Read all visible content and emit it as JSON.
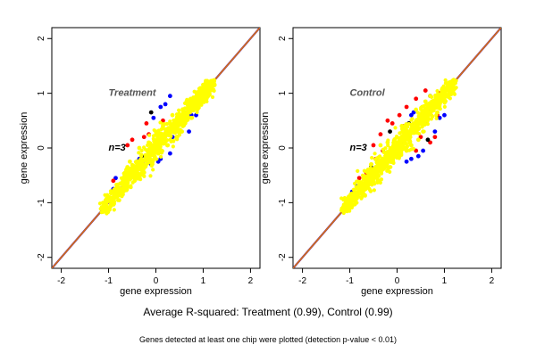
{
  "caption_main": "Average R-squared: Treatment (0.99), Control (0.99)",
  "caption_sub": "Genes detected at least one chip were plotted (detection p-value < 0.01)",
  "colors": {
    "blue": "#0000ff",
    "red": "#ff0000",
    "yellow": "#ffff00",
    "black": "#000000",
    "diag_orange": "#e07b00",
    "diag_purple": "#7a2a8a",
    "label_gray": "#555555"
  },
  "chart_data": [
    {
      "type": "scatter",
      "xlabel": "gene expression",
      "ylabel": "gene expression",
      "xlim": [
        -2.2,
        2.2
      ],
      "ylim": [
        -2.2,
        2.2
      ],
      "xticks": [
        -2,
        -1,
        0,
        1,
        2
      ],
      "yticks": [
        -2,
        -1,
        0,
        1,
        2
      ],
      "grid": false,
      "annotation_title": "Treatment",
      "annotation_n": "n=3",
      "reference_line": "y = x",
      "series": [
        {
          "color": "blue",
          "points": [
            [
              -0.05,
              0.55
            ],
            [
              0.1,
              0.75
            ],
            [
              0.2,
              0.8
            ],
            [
              0.3,
              0.95
            ],
            [
              0.75,
              0.6
            ],
            [
              0.85,
              0.6
            ],
            [
              0.7,
              0.3
            ],
            [
              0.55,
              0.45
            ],
            [
              0.3,
              -0.1
            ],
            [
              0.1,
              -0.2
            ],
            [
              0.05,
              -0.25
            ],
            [
              -0.1,
              -0.3
            ],
            [
              0.35,
              0.2
            ],
            [
              -0.35,
              -0.2
            ],
            [
              -0.5,
              -0.5
            ],
            [
              -0.85,
              -0.55
            ],
            [
              -0.9,
              -0.75
            ],
            [
              0.6,
              0.65
            ],
            [
              0.45,
              0.55
            ],
            [
              0.9,
              0.95
            ]
          ]
        },
        {
          "color": "red",
          "points": [
            [
              -0.5,
              0.15
            ],
            [
              -0.25,
              0.2
            ],
            [
              -0.2,
              0.45
            ],
            [
              -0.6,
              0.05
            ],
            [
              0.15,
              0.5
            ],
            [
              -0.15,
              0.25
            ],
            [
              -0.9,
              -0.6
            ]
          ]
        },
        {
          "color": "black",
          "points": [
            [
              -0.1,
              0.65
            ],
            [
              0.5,
              0.5
            ],
            [
              -0.3,
              -0.15
            ],
            [
              0.0,
              0.05
            ],
            [
              -0.4,
              -0.25
            ]
          ]
        },
        {
          "color": "yellow",
          "points": [
            [
              -1.1,
              -1.05
            ],
            [
              -1.0,
              -0.95
            ],
            [
              -0.9,
              -0.8
            ],
            [
              -0.8,
              -0.75
            ],
            [
              -0.75,
              -0.65
            ],
            [
              -0.6,
              -0.55
            ],
            [
              -0.5,
              -0.45
            ],
            [
              -0.4,
              -0.35
            ],
            [
              -0.3,
              -0.25
            ],
            [
              -0.2,
              -0.15
            ],
            [
              -0.1,
              -0.05
            ],
            [
              0.0,
              0.05
            ],
            [
              0.1,
              0.1
            ],
            [
              0.2,
              0.25
            ],
            [
              0.3,
              0.35
            ],
            [
              0.4,
              0.45
            ],
            [
              0.5,
              0.55
            ],
            [
              0.6,
              0.65
            ],
            [
              0.7,
              0.75
            ],
            [
              0.8,
              0.85
            ],
            [
              0.9,
              0.95
            ],
            [
              1.0,
              1.05
            ],
            [
              1.1,
              1.1
            ],
            [
              1.2,
              1.2
            ],
            [
              -0.6,
              -0.35
            ],
            [
              -0.45,
              -0.6
            ],
            [
              -0.25,
              -0.45
            ],
            [
              -0.15,
              0.1
            ],
            [
              0.05,
              -0.1
            ],
            [
              0.25,
              0.05
            ],
            [
              0.35,
              0.6
            ],
            [
              0.55,
              0.3
            ],
            [
              0.65,
              0.85
            ],
            [
              0.75,
              0.55
            ],
            [
              -0.35,
              0.0
            ],
            [
              0.0,
              0.3
            ],
            [
              -0.7,
              -0.85
            ],
            [
              -0.55,
              -0.25
            ],
            [
              0.15,
              0.4
            ],
            [
              0.45,
              0.2
            ]
          ]
        }
      ]
    },
    {
      "type": "scatter",
      "xlabel": "gene expression",
      "ylabel": "gene expression",
      "xlim": [
        -2.2,
        2.2
      ],
      "ylim": [
        -2.2,
        2.2
      ],
      "xticks": [
        -2,
        -1,
        0,
        1,
        2
      ],
      "yticks": [
        -2,
        -1,
        0,
        1,
        2
      ],
      "grid": false,
      "annotation_title": "Control",
      "annotation_n": "n=3",
      "reference_line": "y = x",
      "series": [
        {
          "color": "blue",
          "points": [
            [
              0.3,
              0.6
            ],
            [
              0.35,
              0.65
            ],
            [
              0.9,
              0.55
            ],
            [
              1.0,
              0.6
            ],
            [
              0.55,
              -0.05
            ],
            [
              0.45,
              -0.15
            ],
            [
              0.3,
              -0.2
            ],
            [
              0.2,
              -0.25
            ],
            [
              -0.05,
              -0.15
            ],
            [
              -0.6,
              -0.55
            ],
            [
              -0.85,
              -0.7
            ],
            [
              -0.95,
              -0.8
            ],
            [
              0.7,
              0.95
            ],
            [
              0.8,
              0.3
            ]
          ]
        },
        {
          "color": "red",
          "points": [
            [
              -0.2,
              0.5
            ],
            [
              -0.1,
              0.45
            ],
            [
              -0.35,
              0.25
            ],
            [
              -0.5,
              0.05
            ],
            [
              0.05,
              0.6
            ],
            [
              0.2,
              0.75
            ],
            [
              0.4,
              0.9
            ],
            [
              0.6,
              1.05
            ],
            [
              0.9,
              1.0
            ],
            [
              0.95,
              0.9
            ],
            [
              0.85,
              0.6
            ],
            [
              0.8,
              0.2
            ],
            [
              0.7,
              0.1
            ],
            [
              0.6,
              0.45
            ],
            [
              0.5,
              0.2
            ],
            [
              0.4,
              -0.05
            ],
            [
              -0.65,
              -0.45
            ],
            [
              -0.8,
              -0.55
            ],
            [
              -0.9,
              -0.95
            ],
            [
              -0.3,
              -0.05
            ],
            [
              0.15,
              0.4
            ],
            [
              -0.45,
              -0.2
            ]
          ]
        },
        {
          "color": "black",
          "points": [
            [
              0.25,
              0.45
            ],
            [
              -0.15,
              0.3
            ],
            [
              -0.55,
              -0.35
            ],
            [
              0.65,
              0.15
            ],
            [
              -0.85,
              -0.85
            ]
          ]
        },
        {
          "color": "yellow",
          "points": [
            [
              -1.1,
              -1.05
            ],
            [
              -1.0,
              -0.95
            ],
            [
              -0.9,
              -0.85
            ],
            [
              -0.8,
              -0.75
            ],
            [
              -0.7,
              -0.65
            ],
            [
              -0.6,
              -0.55
            ],
            [
              -0.5,
              -0.45
            ],
            [
              -0.4,
              -0.35
            ],
            [
              -0.3,
              -0.25
            ],
            [
              -0.2,
              -0.15
            ],
            [
              -0.1,
              -0.05
            ],
            [
              0.0,
              0.05
            ],
            [
              0.1,
              0.15
            ],
            [
              0.2,
              0.25
            ],
            [
              0.3,
              0.35
            ],
            [
              0.4,
              0.45
            ],
            [
              0.5,
              0.55
            ],
            [
              0.6,
              0.65
            ],
            [
              0.7,
              0.75
            ],
            [
              0.8,
              0.85
            ],
            [
              0.9,
              0.95
            ],
            [
              1.0,
              1.05
            ],
            [
              1.1,
              1.1
            ],
            [
              1.2,
              1.2
            ],
            [
              -0.55,
              -0.3
            ],
            [
              -0.4,
              -0.6
            ],
            [
              -0.2,
              0.1
            ],
            [
              0.05,
              -0.15
            ],
            [
              0.3,
              0.05
            ],
            [
              0.4,
              0.7
            ],
            [
              0.55,
              0.3
            ],
            [
              0.7,
              0.95
            ],
            [
              -0.35,
              0.05
            ],
            [
              0.1,
              0.4
            ],
            [
              -0.75,
              -0.9
            ],
            [
              0.2,
              -0.05
            ],
            [
              0.6,
              0.85
            ],
            [
              -0.15,
              -0.35
            ],
            [
              0.45,
              0.15
            ],
            [
              0.85,
              0.65
            ]
          ]
        }
      ]
    }
  ]
}
